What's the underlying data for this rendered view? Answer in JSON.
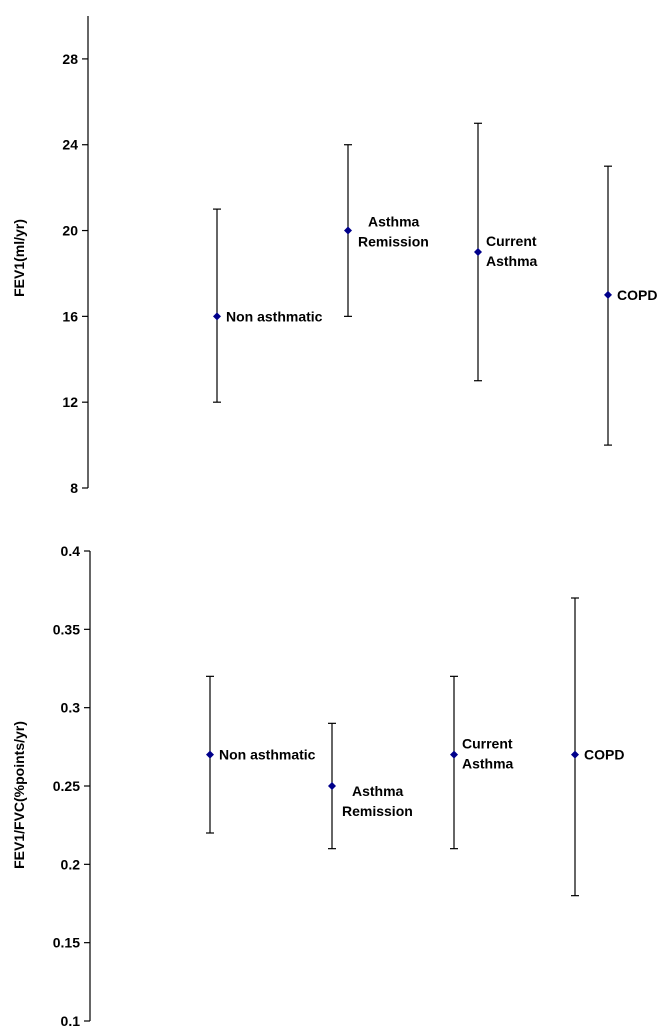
{
  "chart_data": [
    {
      "type": "scatter",
      "title": "",
      "xlabel": "",
      "ylabel": "FEV1(ml/yr)",
      "ylim": [
        8,
        30
      ],
      "yticks": [
        "8",
        "12",
        "16",
        "20",
        "24",
        "28"
      ],
      "grid": false,
      "series": [
        {
          "points": [
            {
              "label": [
                "Non asthmatic"
              ],
              "y": 16,
              "low": 12,
              "high": 21
            },
            {
              "label": [
                "Asthma",
                "Remission"
              ],
              "y": 20,
              "low": 16,
              "high": 24
            },
            {
              "label": [
                "Current",
                "Asthma"
              ],
              "y": 19,
              "low": 13,
              "high": 25
            },
            {
              "label": [
                "COPD"
              ],
              "y": 17,
              "low": 10,
              "high": 23
            }
          ]
        }
      ],
      "marker_color": "#00008B"
    },
    {
      "type": "scatter",
      "title": "",
      "xlabel": "",
      "ylabel": "FEV1/FVC(%points/yr)",
      "ylim": [
        0.1,
        0.4
      ],
      "yticks": [
        "0.1",
        "0.15",
        "0.2",
        "0.25",
        "0.3",
        "0.35",
        "0.4"
      ],
      "grid": false,
      "series": [
        {
          "points": [
            {
              "label": [
                "Non asthmatic"
              ],
              "y": 0.27,
              "low": 0.22,
              "high": 0.32
            },
            {
              "label": [
                "Asthma",
                "Remission"
              ],
              "y": 0.25,
              "low": 0.21,
              "high": 0.29
            },
            {
              "label": [
                "Current",
                "Asthma"
              ],
              "y": 0.27,
              "low": 0.21,
              "high": 0.32
            },
            {
              "label": [
                "COPD"
              ],
              "y": 0.27,
              "low": 0.18,
              "high": 0.37
            }
          ]
        }
      ],
      "marker_color": "#00008B"
    }
  ]
}
